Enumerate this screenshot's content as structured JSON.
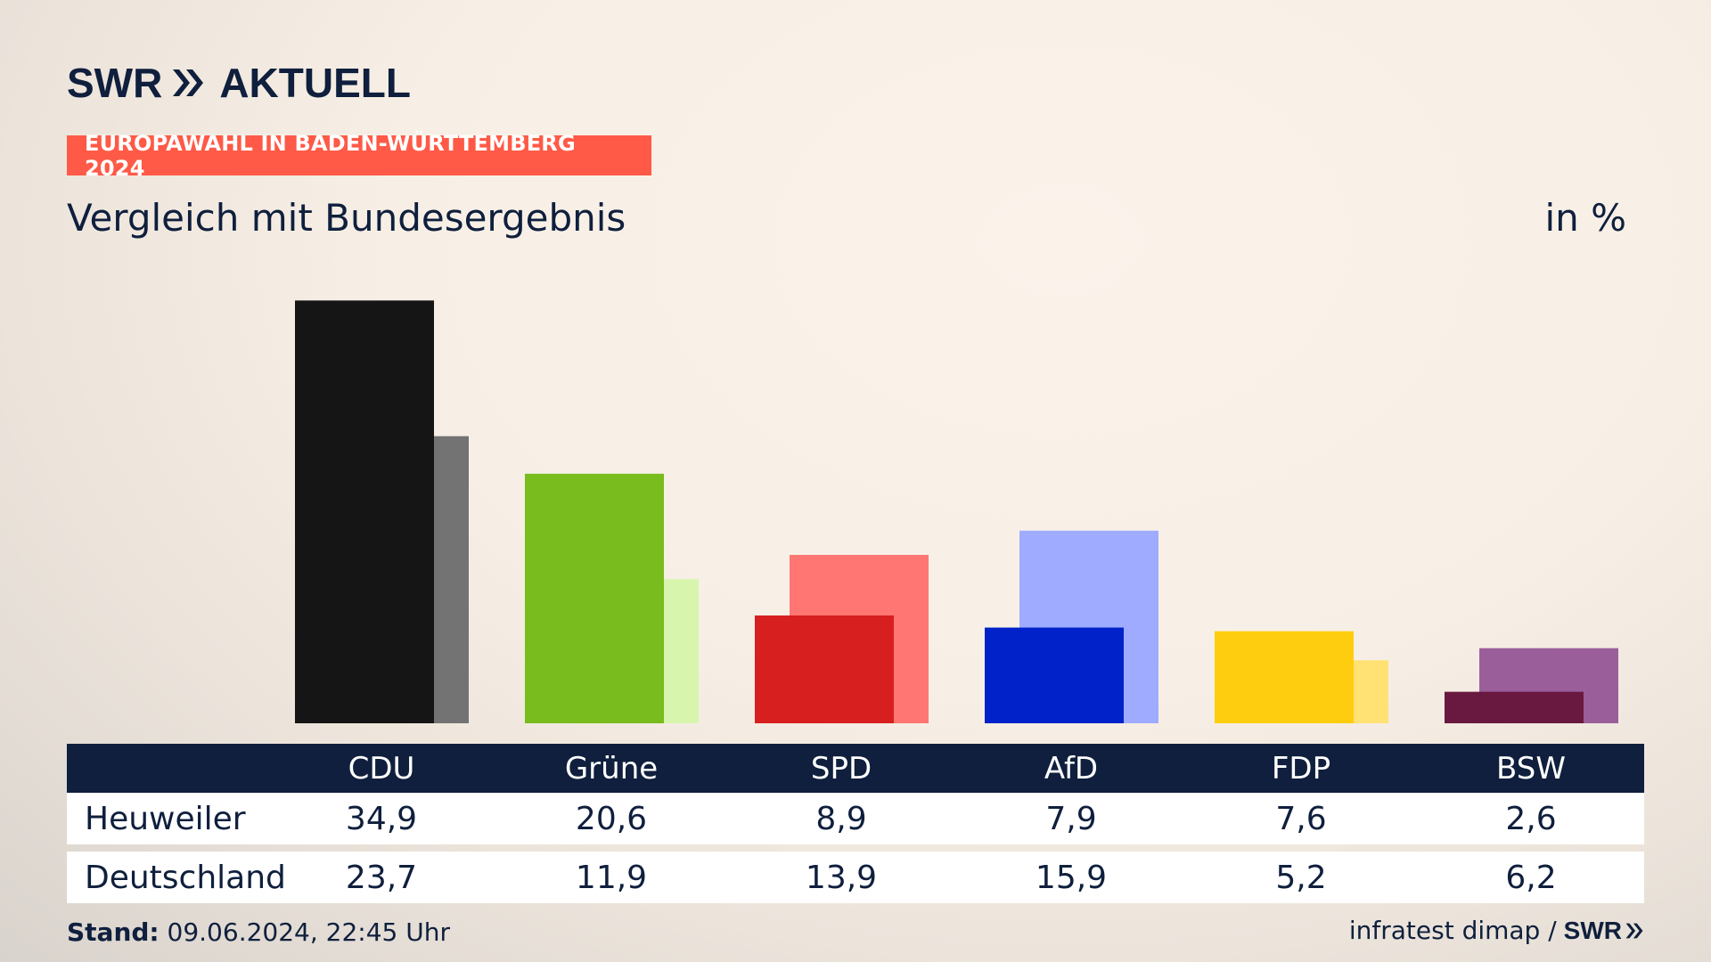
{
  "header": {
    "logo_brand": "SWR",
    "logo_product": "AKTUELL",
    "badge": "EUROPAWAHL IN BADEN-WÜRTTEMBERG 2024",
    "subtitle": "Vergleich mit Bundesergebnis",
    "unit": "in %"
  },
  "chart_data": {
    "type": "bar",
    "title": "Vergleich mit Bundesergebnis",
    "unit": "in %",
    "categories": [
      "CDU",
      "Grüne",
      "SPD",
      "AfD",
      "FDP",
      "BSW"
    ],
    "series": [
      {
        "name": "Heuweiler",
        "values": [
          34.9,
          20.6,
          8.9,
          7.9,
          7.6,
          2.6
        ]
      },
      {
        "name": "Deutschland",
        "values": [
          23.7,
          11.9,
          13.9,
          15.9,
          5.2,
          6.2
        ]
      }
    ],
    "ylim": [
      0,
      35
    ],
    "grid": false,
    "colors": {
      "local": [
        "#151515",
        "#78bc1e",
        "#d81f1f",
        "#0022c8",
        "#ffcd0f",
        "#69183f"
      ],
      "national": [
        "#737373",
        "#d7f5ad",
        "#ff7672",
        "#9eabff",
        "#ffe273",
        "#9a5e9a"
      ]
    }
  },
  "table": {
    "headers": [
      "CDU",
      "Grüne",
      "SPD",
      "AfD",
      "FDP",
      "BSW"
    ],
    "rows": [
      {
        "label": "Heuweiler",
        "values": [
          "34,9",
          "20,6",
          "8,9",
          "7,9",
          "7,6",
          "2,6"
        ]
      },
      {
        "label": "Deutschland",
        "values": [
          "23,7",
          "11,9",
          "13,9",
          "15,9",
          "5,2",
          "6,2"
        ]
      }
    ]
  },
  "footer": {
    "stand_label": "Stand:",
    "stand_value": "09.06.2024, 22:45 Uhr",
    "source": "infratest dimap /",
    "source_brand": "SWR"
  }
}
